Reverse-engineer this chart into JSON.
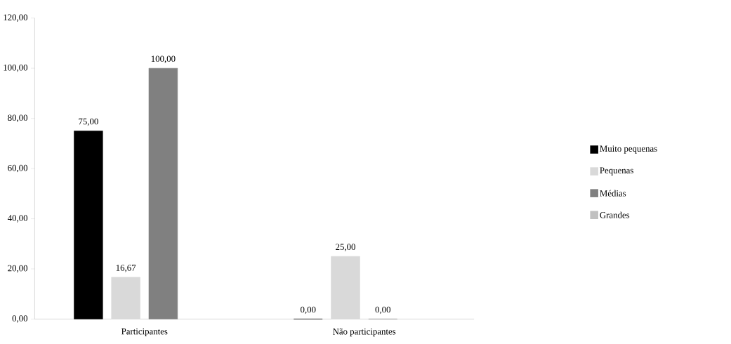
{
  "chart_data": {
    "type": "bar",
    "categories": [
      "Participantes",
      "Não participantes"
    ],
    "series": [
      {
        "name": "Muito pequenas",
        "color": "#000000",
        "values": [
          75,
          0
        ],
        "value_labels": [
          "75,00",
          "0,00"
        ]
      },
      {
        "name": "Pequenas",
        "color": "#d9d9d9",
        "values": [
          16.67,
          25
        ],
        "value_labels": [
          "16,67",
          "25,00"
        ]
      },
      {
        "name": "Médias",
        "color": "#808080",
        "values": [
          100,
          0
        ],
        "value_labels": [
          "100,00",
          "0,00"
        ]
      },
      {
        "name": "Grandes",
        "color": "#c0c0c0",
        "values": [
          null,
          null
        ],
        "value_labels": [
          null,
          null
        ]
      }
    ],
    "ylim": [
      0,
      120
    ],
    "yticks": [
      {
        "value": 0,
        "label": "0,00"
      },
      {
        "value": 20,
        "label": "20,00"
      },
      {
        "value": 40,
        "label": "40,00"
      },
      {
        "value": 60,
        "label": "60,00"
      },
      {
        "value": 80,
        "label": "80,00"
      },
      {
        "value": 100,
        "label": "100,00"
      },
      {
        "value": 120,
        "label": "120,00"
      }
    ],
    "grid": false,
    "legend": "right"
  }
}
